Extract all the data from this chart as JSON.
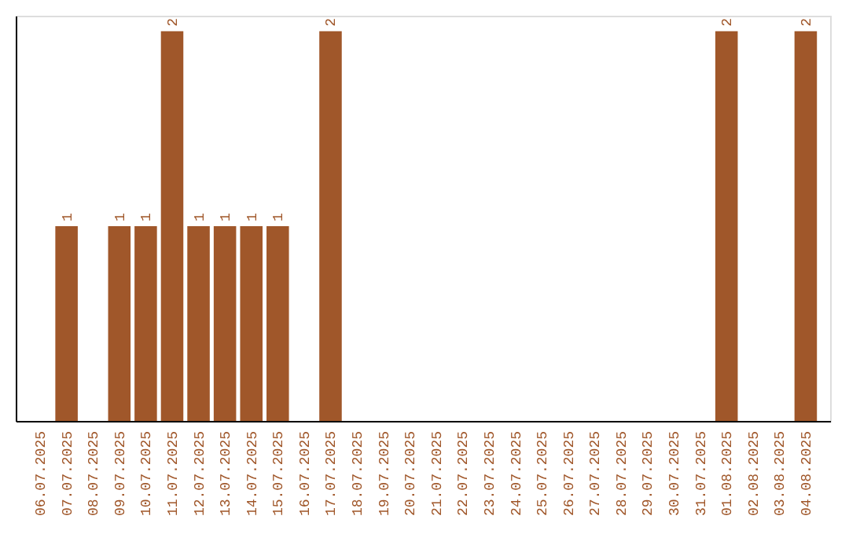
{
  "chart_data": {
    "type": "bar",
    "categories": [
      "06.07.2025",
      "07.07.2025",
      "08.07.2025",
      "09.07.2025",
      "10.07.2025",
      "11.07.2025",
      "12.07.2025",
      "13.07.2025",
      "14.07.2025",
      "15.07.2025",
      "16.07.2025",
      "17.07.2025",
      "18.07.2025",
      "19.07.2025",
      "20.07.2025",
      "21.07.2025",
      "22.07.2025",
      "23.07.2025",
      "24.07.2025",
      "25.07.2025",
      "26.07.2025",
      "27.07.2025",
      "28.07.2025",
      "29.07.2025",
      "30.07.2025",
      "31.07.2025",
      "01.08.2025",
      "02.08.2025",
      "03.08.2025",
      "04.08.2025"
    ],
    "values": [
      0,
      1,
      0,
      1,
      1,
      2,
      1,
      1,
      1,
      1,
      0,
      2,
      0,
      0,
      0,
      0,
      0,
      0,
      0,
      0,
      0,
      0,
      0,
      0,
      0,
      0,
      2,
      0,
      0,
      2
    ],
    "value_labels": [
      null,
      "1",
      null,
      "1",
      "1",
      "2",
      "1",
      "1",
      "1",
      "1",
      null,
      "2",
      null,
      null,
      null,
      null,
      null,
      null,
      null,
      null,
      null,
      null,
      null,
      null,
      null,
      null,
      "2",
      null,
      null,
      "2"
    ],
    "color": "#a0572a",
    "ylim": [
      0,
      2.08
    ],
    "tick_labels": "x",
    "grid": false
  }
}
